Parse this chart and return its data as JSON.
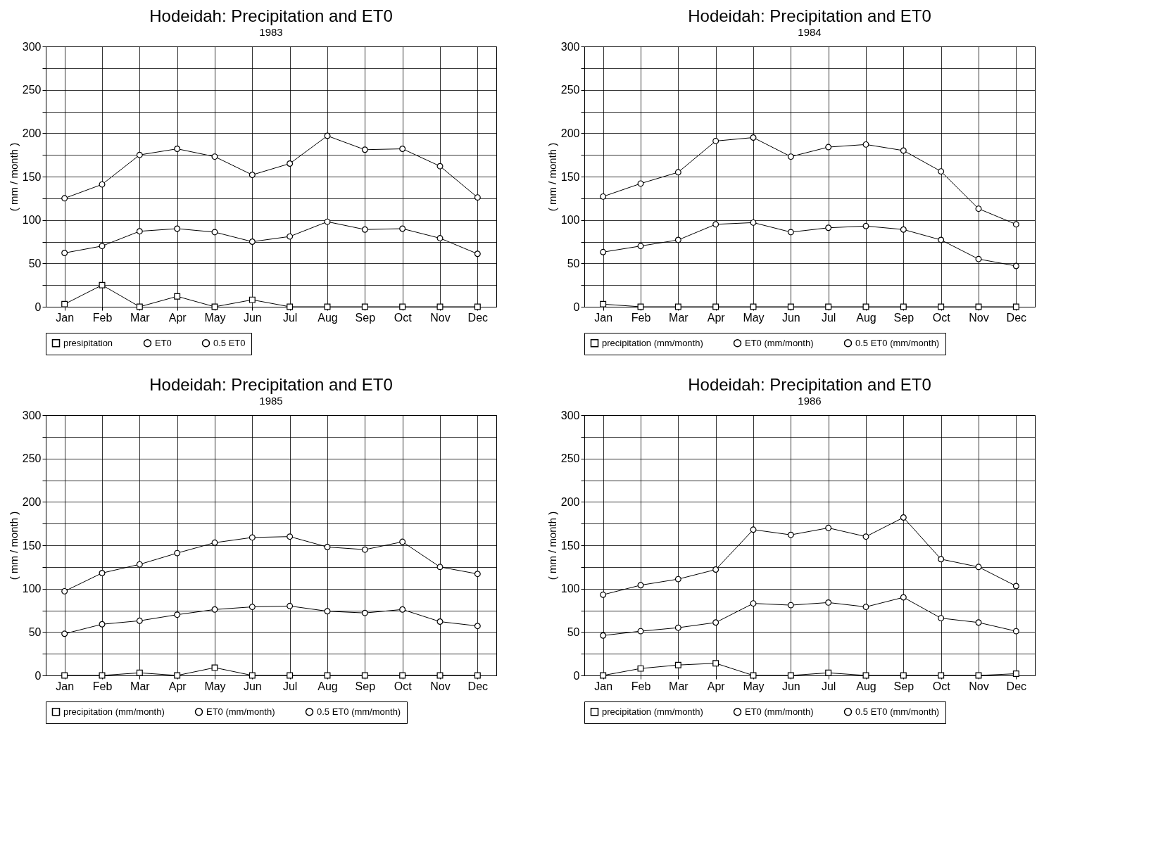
{
  "chart_data": [
    {
      "type": "line",
      "title": "Hodeidah: Precipitation and ET0",
      "subtitle": "1983",
      "ylabel": "( mm / month )",
      "categories": [
        "Jan",
        "Feb",
        "Mar",
        "Apr",
        "May",
        "Jun",
        "Jul",
        "Aug",
        "Sep",
        "Oct",
        "Nov",
        "Dec"
      ],
      "series": [
        {
          "name": "presipitation",
          "color": "#000000",
          "marker": "square",
          "values": [
            3,
            25,
            0,
            12,
            0,
            8,
            0,
            0,
            0,
            0,
            0,
            0
          ]
        },
        {
          "name": "ET0",
          "color": "#000000",
          "marker": "circle",
          "values": [
            125,
            141,
            175,
            182,
            173,
            152,
            165,
            197,
            181,
            182,
            162,
            126
          ]
        },
        {
          "name": "0.5 ET0",
          "color": "#000000",
          "marker": "circle",
          "values": [
            62,
            70,
            87,
            90,
            86,
            75,
            81,
            98,
            89,
            90,
            79,
            61
          ]
        }
      ],
      "ylim": [
        0,
        300
      ],
      "yticks": [
        0,
        {
          "value": 25,
          "label": null
        },
        50,
        {
          "value": 75,
          "label": null
        },
        100,
        {
          "value": 125,
          "label": null
        },
        150,
        {
          "value": 175,
          "label": null
        },
        200,
        {
          "value": 225,
          "label": null
        },
        250,
        {
          "value": 275,
          "label": null
        },
        300
      ],
      "grid": true,
      "legend": "bottom"
    },
    {
      "type": "line",
      "title": "Hodeidah: Precipitation and ET0",
      "subtitle": "1984",
      "ylabel": "( mm / month )",
      "categories": [
        "Jan",
        "Feb",
        "Mar",
        "Apr",
        "May",
        "Jun",
        "Jul",
        "Aug",
        "Sep",
        "Oct",
        "Nov",
        "Dec"
      ],
      "series": [
        {
          "name": "precipitation (mm/month)",
          "color": "#000000",
          "marker": "square",
          "values": [
            3,
            0,
            0,
            0,
            0,
            0,
            0,
            0,
            0,
            0,
            0,
            0
          ]
        },
        {
          "name": "ET0 (mm/month)",
          "color": "#000000",
          "marker": "circle",
          "values": [
            127,
            142,
            155,
            191,
            195,
            173,
            184,
            187,
            180,
            156,
            113,
            95
          ]
        },
        {
          "name": "0.5 ET0 (mm/month)",
          "color": "#000000",
          "marker": "circle",
          "values": [
            63,
            70,
            77,
            95,
            97,
            86,
            91,
            93,
            89,
            77,
            55,
            47
          ]
        }
      ],
      "ylim": [
        0,
        300
      ],
      "yticks": [
        0,
        {
          "value": 25,
          "label": null
        },
        50,
        {
          "value": 75,
          "label": null
        },
        100,
        {
          "value": 125,
          "label": null
        },
        150,
        {
          "value": 175,
          "label": null
        },
        200,
        {
          "value": 225,
          "label": null
        },
        250,
        {
          "value": 275,
          "label": null
        },
        300
      ],
      "grid": true,
      "legend": "bottom"
    },
    {
      "type": "line",
      "title": "Hodeidah: Precipitation and ET0",
      "subtitle": "1985",
      "ylabel": "( mm / month )",
      "categories": [
        "Jan",
        "Feb",
        "Mar",
        "Apr",
        "May",
        "Jun",
        "Jul",
        "Aug",
        "Sep",
        "Oct",
        "Nov",
        "Dec"
      ],
      "series": [
        {
          "name": "precipitation (mm/month)",
          "color": "#000000",
          "marker": "square",
          "values": [
            0,
            0,
            3,
            0,
            9,
            0,
            0,
            0,
            0,
            0,
            0,
            0
          ]
        },
        {
          "name": "ET0 (mm/month)",
          "color": "#000000",
          "marker": "circle",
          "values": [
            97,
            118,
            128,
            141,
            153,
            159,
            160,
            148,
            145,
            154,
            125,
            117
          ]
        },
        {
          "name": "0.5 ET0 (mm/month)",
          "color": "#000000",
          "marker": "circle",
          "values": [
            48,
            59,
            63,
            70,
            76,
            79,
            80,
            74,
            72,
            76,
            62,
            57
          ]
        }
      ],
      "ylim": [
        0,
        300
      ],
      "yticks": [
        0,
        {
          "value": 25,
          "label": null
        },
        50,
        {
          "value": 75,
          "label": null
        },
        100,
        {
          "value": 125,
          "label": null
        },
        150,
        {
          "value": 175,
          "label": null
        },
        200,
        {
          "value": 225,
          "label": null
        },
        250,
        {
          "value": 275,
          "label": null
        },
        300
      ],
      "grid": true,
      "legend": "bottom"
    },
    {
      "type": "line",
      "title": "Hodeidah: Precipitation and ET0",
      "subtitle": "1986",
      "ylabel": "( mm / month )",
      "categories": [
        "Jan",
        "Feb",
        "Mar",
        "Apr",
        "May",
        "Jun",
        "Jul",
        "Aug",
        "Sep",
        "Oct",
        "Nov",
        "Dec"
      ],
      "series": [
        {
          "name": "precipitation (mm/month)",
          "color": "#000000",
          "marker": "square",
          "values": [
            0,
            8,
            12,
            14,
            0,
            0,
            3,
            0,
            0,
            0,
            0,
            2
          ]
        },
        {
          "name": "ET0 (mm/month)",
          "color": "#000000",
          "marker": "circle",
          "values": [
            93,
            104,
            111,
            122,
            168,
            162,
            170,
            160,
            182,
            134,
            125,
            103
          ]
        },
        {
          "name": "0.5 ET0 (mm/month)",
          "color": "#000000",
          "marker": "circle",
          "values": [
            46,
            51,
            55,
            61,
            83,
            81,
            84,
            79,
            90,
            66,
            61,
            51
          ]
        }
      ],
      "ylim": [
        0,
        300
      ],
      "yticks": [
        0,
        {
          "value": 25,
          "label": null
        },
        50,
        {
          "value": 75,
          "label": null
        },
        100,
        {
          "value": 125,
          "label": null
        },
        150,
        {
          "value": 175,
          "label": null
        },
        200,
        {
          "value": 225,
          "label": null
        },
        250,
        {
          "value": 275,
          "label": null
        },
        300
      ],
      "grid": true,
      "legend": "bottom"
    }
  ]
}
